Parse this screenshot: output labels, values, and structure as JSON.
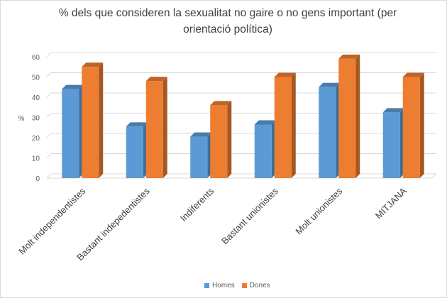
{
  "chart_data": {
    "type": "bar",
    "title": "% dels que consideren la sexualitat no gaire o no gens important (per orientació política)",
    "ylabel": "%",
    "xlabel": "",
    "ylim": [
      0,
      60
    ],
    "yticks": [
      0,
      10,
      20,
      30,
      40,
      50,
      60
    ],
    "grid": true,
    "legend": "bottom",
    "style": "3d-columns",
    "categories": [
      "Molt independentistes",
      "Bastant indepedentistes",
      "Indiferents",
      "Bastant unionistes",
      "Molt unionistes",
      "MITJANA"
    ],
    "series": [
      {
        "name": "Homes",
        "color": "#5b9bd5",
        "values": [
          44,
          25.5,
          20.5,
          26.5,
          45,
          32.5
        ]
      },
      {
        "name": "Dones",
        "color": "#ed7d31",
        "values": [
          55,
          48,
          36,
          50,
          59,
          50
        ]
      }
    ]
  }
}
